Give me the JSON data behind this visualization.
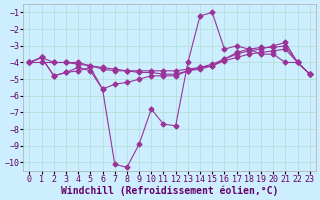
{
  "background_color": "#cceeff",
  "grid_color": "#b0ddd0",
  "line_color": "#993399",
  "marker": "D",
  "markersize": 2.5,
  "linewidth": 0.8,
  "xlabel": "Windchill (Refroidissement éolien,°C)",
  "xlabel_fontsize": 7,
  "tick_fontsize": 6,
  "xlim": [
    -0.5,
    23.5
  ],
  "ylim": [
    -10.5,
    -0.5
  ],
  "yticks": [
    -10,
    -9,
    -8,
    -7,
    -6,
    -5,
    -4,
    -3,
    -2,
    -1
  ],
  "xticks": [
    0,
    1,
    2,
    3,
    4,
    5,
    6,
    7,
    8,
    9,
    10,
    11,
    12,
    13,
    14,
    15,
    16,
    17,
    18,
    19,
    20,
    21,
    22,
    23
  ],
  "series": [
    {
      "x": [
        0,
        1,
        2,
        3,
        4,
        5,
        6,
        7,
        8,
        9,
        10,
        11,
        12,
        13,
        14,
        15,
        16,
        17,
        18,
        19,
        20,
        21,
        22,
        23
      ],
      "y": [
        -4.0,
        -3.7,
        -4.0,
        -4.0,
        -4.0,
        -4.2,
        -4.4,
        -4.5,
        -4.5,
        -4.5,
        -4.5,
        -4.5,
        -4.5,
        -4.4,
        -4.3,
        -4.2,
        -3.9,
        -3.7,
        -3.5,
        -3.4,
        -3.3,
        -3.2,
        -4.0,
        -4.7
      ]
    },
    {
      "x": [
        0,
        1,
        2,
        3,
        4,
        5,
        6,
        7,
        8,
        9,
        10,
        11,
        12,
        13,
        14,
        15,
        16,
        17,
        18,
        19,
        20,
        21,
        22,
        23
      ],
      "y": [
        -4.0,
        -4.0,
        -4.0,
        -4.0,
        -4.1,
        -4.2,
        -4.3,
        -4.4,
        -4.5,
        -4.6,
        -4.6,
        -4.7,
        -4.7,
        -4.5,
        -4.4,
        -4.2,
        -3.8,
        -3.4,
        -3.2,
        -3.1,
        -3.1,
        -3.0,
        -4.0,
        -4.7
      ]
    },
    {
      "x": [
        0,
        1,
        2,
        3,
        4,
        5,
        6,
        7,
        8,
        9,
        10,
        11,
        12,
        13,
        14,
        15,
        16,
        17,
        18,
        19,
        20,
        21,
        22,
        23
      ],
      "y": [
        -4.0,
        -3.7,
        -4.8,
        -4.6,
        -4.3,
        -4.5,
        -5.6,
        -5.3,
        -5.2,
        -5.0,
        -4.8,
        -4.8,
        -4.8,
        -4.5,
        -4.3,
        -4.1,
        -3.8,
        -3.5,
        -3.3,
        -3.2,
        -3.0,
        -2.8,
        -4.0,
        -4.7
      ]
    },
    {
      "x": [
        0,
        1,
        2,
        3,
        4,
        5,
        6,
        7,
        8,
        9,
        10,
        11,
        12,
        13,
        14,
        15,
        16,
        17,
        18,
        19,
        20,
        21,
        22,
        23
      ],
      "y": [
        -4.0,
        -3.7,
        -4.8,
        -4.6,
        -4.5,
        -4.3,
        -5.6,
        -10.1,
        -10.3,
        -8.9,
        -6.8,
        -7.7,
        -7.8,
        -4.0,
        -1.2,
        -1.0,
        -3.2,
        -3.0,
        -3.2,
        -3.5,
        -3.5,
        -4.0,
        -4.0,
        -4.7
      ]
    }
  ]
}
